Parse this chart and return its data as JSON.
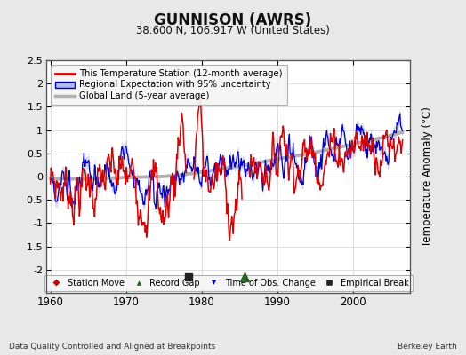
{
  "title": "GUNNISON (AWRS)",
  "subtitle": "38.600 N, 106.917 W (United States)",
  "ylabel": "Temperature Anomaly (°C)",
  "xlim": [
    1959.5,
    2007.5
  ],
  "ylim": [
    -2.5,
    2.5
  ],
  "yticks": [
    -2,
    -1.5,
    -1,
    -0.5,
    0,
    0.5,
    1,
    1.5,
    2,
    2.5
  ],
  "ytick_labels": [
    "-2",
    "-1.5",
    "-1",
    "-0.5",
    "0",
    "0.5",
    "1",
    "1.5",
    "2",
    "2.5"
  ],
  "xticks": [
    1960,
    1970,
    1980,
    1990,
    2000
  ],
  "footer_left": "Data Quality Controlled and Aligned at Breakpoints",
  "footer_right": "Berkeley Earth",
  "empirical_break_x": 1978.3,
  "record_gap_x": 1985.7,
  "background_color": "#e8e8e8",
  "plot_bg_color": "#ffffff",
  "red_line_color": "#dd0000",
  "blue_line_color": "#0000cc",
  "blue_fill_color": "#b0b8ee",
  "gray_line_color": "#b0b0b0",
  "legend_items": [
    "This Temperature Station (12-month average)",
    "Regional Expectation with 95% uncertainty",
    "Global Land (5-year average)"
  ],
  "marker_legend": [
    "Station Move",
    "Record Gap",
    "Time of Obs. Change",
    "Empirical Break"
  ]
}
